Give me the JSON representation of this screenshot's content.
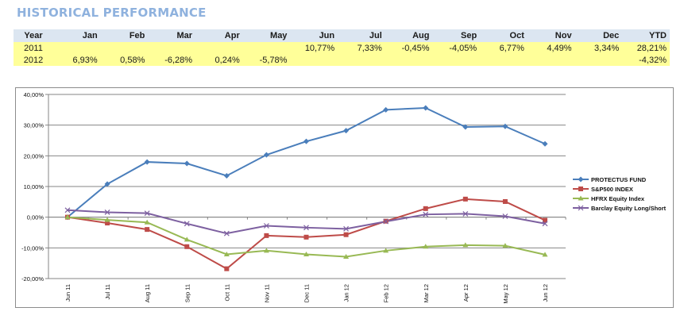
{
  "title": "HISTORICAL PERFORMANCE",
  "table": {
    "headers": [
      "Year",
      "Jan",
      "Feb",
      "Mar",
      "Apr",
      "May",
      "Jun",
      "Jul",
      "Aug",
      "Sep",
      "Oct",
      "Nov",
      "Dec",
      "YTD"
    ],
    "rows": [
      [
        "2011",
        "",
        "",
        "",
        "",
        "",
        "10,77%",
        "7,33%",
        "-0,45%",
        "-4,05%",
        "6,77%",
        "4,49%",
        "3,34%",
        "28,21%"
      ],
      [
        "2012",
        "6,93%",
        "0,58%",
        "-6,28%",
        "0,24%",
        "-5,78%",
        "",
        "",
        "",
        "",
        "",
        "",
        "",
        "-4,32%"
      ]
    ]
  },
  "chart_data": {
    "type": "line",
    "title": "",
    "xlabel": "",
    "ylabel": "",
    "ylim": [
      -20,
      40
    ],
    "yticks": [
      40,
      30,
      20,
      10,
      0,
      -10,
      -20
    ],
    "ytick_labels": [
      "40,00%",
      "30,00%",
      "20,00%",
      "10,00%",
      "0,00%",
      "-10,00%",
      "-20,00%"
    ],
    "grid": true,
    "legend_position": "right",
    "categories": [
      "Jun 11",
      "Jul 11",
      "Aug 11",
      "Sep 11",
      "Oct 11",
      "Nov 11",
      "Dec 11",
      "Jan 12",
      "Feb 12",
      "Mar 12",
      "Apr 12",
      "May 12",
      "Jun 12"
    ],
    "series": [
      {
        "name": "PROTECTUS FUND",
        "color": "#4a7ebb",
        "marker": "diamond",
        "values": [
          0,
          10.8,
          18.0,
          17.5,
          13.5,
          20.3,
          24.7,
          28.2,
          35.0,
          35.6,
          29.4,
          29.6,
          23.9
        ]
      },
      {
        "name": "S&P500 INDEX",
        "color": "#be4b48",
        "marker": "square",
        "values": [
          0,
          -1.9,
          -4.0,
          -9.6,
          -16.8,
          -6.0,
          -6.5,
          -5.7,
          -1.3,
          2.8,
          5.9,
          5.1,
          -1.0
        ]
      },
      {
        "name": "HFRX Equity Index",
        "color": "#98b954",
        "marker": "triangle",
        "values": [
          0,
          -0.9,
          -1.7,
          -7.3,
          -12.1,
          -10.9,
          -12.1,
          -12.9,
          -10.9,
          -9.6,
          -9.1,
          -9.3,
          -12.2
        ]
      },
      {
        "name": "Barclay Equity Long/Short",
        "color": "#7d60a0",
        "marker": "x",
        "values": [
          2.3,
          1.6,
          1.3,
          -2.1,
          -5.3,
          -2.8,
          -3.4,
          -3.8,
          -1.4,
          0.9,
          1.1,
          0.3,
          -2.1
        ]
      }
    ]
  }
}
